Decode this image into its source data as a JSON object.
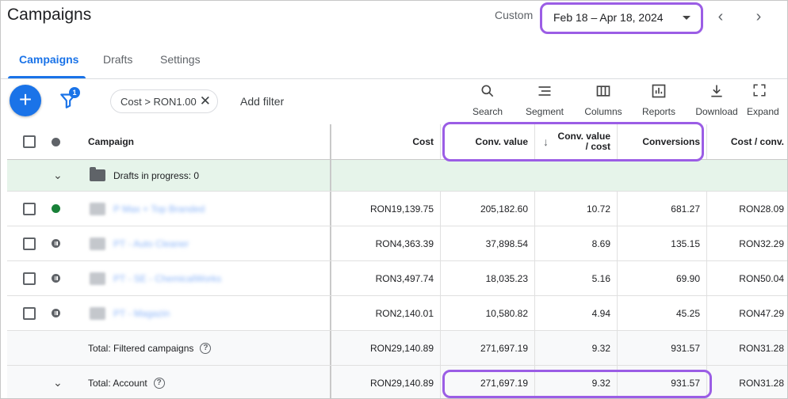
{
  "header": {
    "title": "Campaigns",
    "custom_label": "Custom",
    "date_range": "Feb 18 – Apr 18, 2024"
  },
  "tabs": [
    {
      "label": "Campaigns",
      "active": true
    },
    {
      "label": "Drafts",
      "active": false
    },
    {
      "label": "Settings",
      "active": false
    }
  ],
  "toolbar": {
    "filter_count": "1",
    "filter_chip": "Cost > RON1.00",
    "add_filter": "Add filter",
    "tools": [
      "Search",
      "Segment",
      "Columns",
      "Reports",
      "Download",
      "Expand"
    ]
  },
  "table": {
    "headers": {
      "campaign": "Campaign",
      "cost": "Cost",
      "conv_value": "Conv. value",
      "conv_value_cost": "Conv. value / cost",
      "conversions": "Conversions",
      "cost_conv": "Cost / conv."
    },
    "drafts_label": "Drafts in progress: 0",
    "rows": [
      {
        "status": "enabled",
        "name": "P Max + Top Branded",
        "cost": "RON19,139.75",
        "conv_value": "205,182.60",
        "conv_value_cost": "10.72",
        "conversions": "681.27",
        "cost_conv": "RON28.09"
      },
      {
        "status": "paused",
        "name": "PT - Auto Cleaner",
        "cost": "RON4,363.39",
        "conv_value": "37,898.54",
        "conv_value_cost": "8.69",
        "conversions": "135.15",
        "cost_conv": "RON32.29"
      },
      {
        "status": "paused",
        "name": "PT - SE - ChemicalWorks",
        "cost": "RON3,497.74",
        "conv_value": "18,035.23",
        "conv_value_cost": "5.16",
        "conversions": "69.90",
        "cost_conv": "RON50.04"
      },
      {
        "status": "paused",
        "name": "PT - Magazin",
        "cost": "RON2,140.01",
        "conv_value": "10,580.82",
        "conv_value_cost": "4.94",
        "conversions": "45.25",
        "cost_conv": "RON47.29"
      }
    ],
    "total_filtered": {
      "label": "Total: Filtered campaigns",
      "cost": "RON29,140.89",
      "conv_value": "271,697.19",
      "conv_value_cost": "9.32",
      "conversions": "931.57",
      "cost_conv": "RON31.28"
    },
    "total_account": {
      "label": "Total: Account",
      "cost": "RON29,140.89",
      "conv_value": "271,697.19",
      "conv_value_cost": "9.32",
      "conversions": "931.57",
      "cost_conv": "RON31.28"
    }
  },
  "colors": {
    "accent": "#1a73e8",
    "highlight": "#9b5de5",
    "enabled": "#188038",
    "drafts_bg": "#e6f4ea"
  }
}
